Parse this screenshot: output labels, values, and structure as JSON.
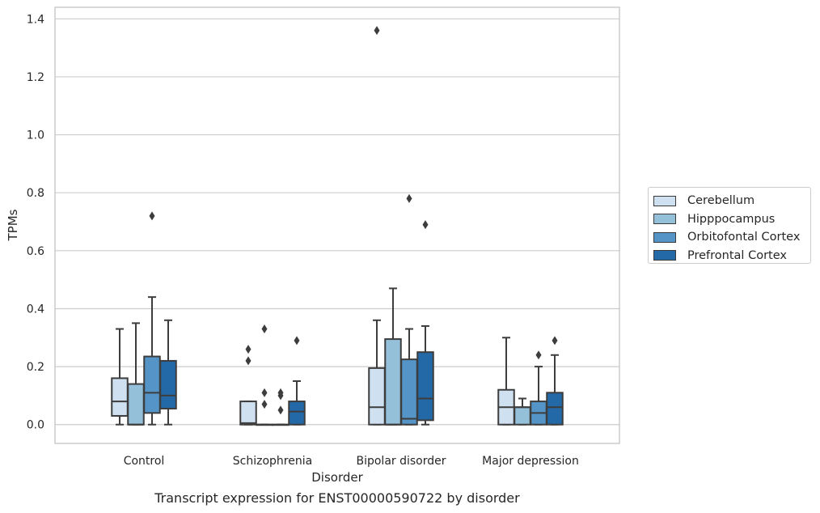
{
  "chart_data": {
    "type": "box",
    "title": "",
    "caption": "Transcript expression for ENST00000590722 by disorder",
    "xlabel": "Disorder",
    "ylabel": "TPMs",
    "ylim": [
      -0.065,
      1.44
    ],
    "yticks": [
      0.0,
      0.2,
      0.4,
      0.6,
      0.8,
      1.0,
      1.2,
      1.4
    ],
    "ytick_labels": [
      "0.0",
      "0.2",
      "0.4",
      "0.6",
      "0.8",
      "1.0",
      "1.2",
      "1.4"
    ],
    "grid": "horizontal",
    "legend_position": "right",
    "categories": [
      "Control",
      "Schizophrenia",
      "Bipolar disorder",
      "Major depression"
    ],
    "series": [
      {
        "name": "Cerebellum",
        "color": "#cfe0f0",
        "boxes": [
          {
            "whislo": 0.0,
            "q1": 0.03,
            "med": 0.08,
            "q3": 0.16,
            "whishi": 0.33,
            "fliers": []
          },
          {
            "whislo": 0.0,
            "q1": 0.0,
            "med": 0.005,
            "q3": 0.08,
            "whishi": 0.08,
            "fliers": [
              0.26,
              0.22
            ]
          },
          {
            "whislo": 0.0,
            "q1": 0.0,
            "med": 0.06,
            "q3": 0.195,
            "whishi": 0.36,
            "fliers": [
              1.36
            ]
          },
          {
            "whislo": 0.0,
            "q1": 0.0,
            "med": 0.06,
            "q3": 0.12,
            "whishi": 0.3,
            "fliers": []
          }
        ]
      },
      {
        "name": "Hipppocampus",
        "color": "#94c0da",
        "boxes": [
          {
            "whislo": 0.0,
            "q1": 0.0,
            "med": 0.0,
            "q3": 0.14,
            "whishi": 0.35,
            "fliers": []
          },
          {
            "whislo": 0.0,
            "q1": 0.0,
            "med": 0.0,
            "q3": 0.0,
            "whishi": 0.0,
            "fliers": [
              0.33,
              0.11,
              0.07
            ]
          },
          {
            "whislo": 0.0,
            "q1": 0.0,
            "med": 0.0,
            "q3": 0.295,
            "whishi": 0.47,
            "fliers": []
          },
          {
            "whislo": 0.0,
            "q1": 0.0,
            "med": 0.06,
            "q3": 0.06,
            "whishi": 0.09,
            "fliers": []
          }
        ]
      },
      {
        "name": "Orbitofontal Cortex",
        "color": "#5494c6",
        "boxes": [
          {
            "whislo": 0.0,
            "q1": 0.04,
            "med": 0.11,
            "q3": 0.235,
            "whishi": 0.44,
            "fliers": [
              0.72
            ]
          },
          {
            "whislo": 0.0,
            "q1": 0.0,
            "med": 0.0,
            "q3": 0.0,
            "whishi": 0.0,
            "fliers": [
              0.11,
              0.1,
              0.05
            ]
          },
          {
            "whislo": 0.0,
            "q1": 0.0,
            "med": 0.02,
            "q3": 0.225,
            "whishi": 0.33,
            "fliers": [
              0.78
            ]
          },
          {
            "whislo": 0.0,
            "q1": 0.0,
            "med": 0.04,
            "q3": 0.08,
            "whishi": 0.2,
            "fliers": [
              0.24
            ]
          }
        ]
      },
      {
        "name": "Prefrontal Cortex",
        "color": "#2469a7",
        "boxes": [
          {
            "whislo": 0.0,
            "q1": 0.055,
            "med": 0.1,
            "q3": 0.22,
            "whishi": 0.36,
            "fliers": []
          },
          {
            "whislo": 0.0,
            "q1": 0.0,
            "med": 0.045,
            "q3": 0.08,
            "whishi": 0.15,
            "fliers": [
              0.29
            ]
          },
          {
            "whislo": 0.0,
            "q1": 0.015,
            "med": 0.09,
            "q3": 0.25,
            "whishi": 0.34,
            "fliers": [
              0.69
            ]
          },
          {
            "whislo": 0.0,
            "q1": 0.0,
            "med": 0.06,
            "q3": 0.11,
            "whishi": 0.24,
            "fliers": [
              0.29
            ]
          }
        ]
      }
    ]
  }
}
